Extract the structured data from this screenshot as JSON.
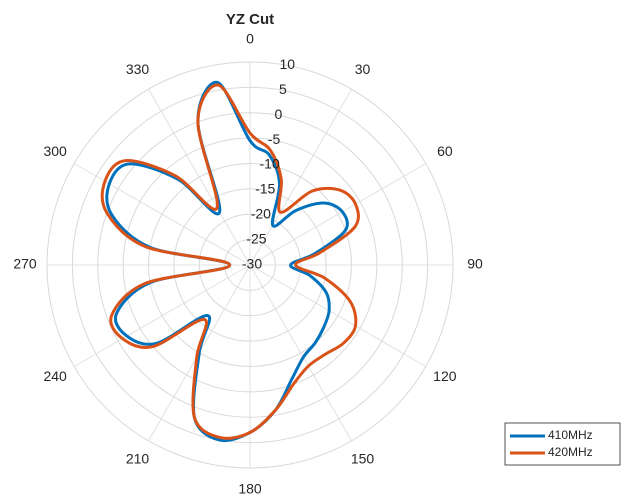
{
  "chart_data": {
    "type": "polar",
    "title": "YZ Cut",
    "theta": [
      0,
      10,
      20,
      30,
      40,
      50,
      60,
      70,
      80,
      90,
      100,
      110,
      120,
      130,
      140,
      150,
      160,
      170,
      180,
      190,
      200,
      210,
      220,
      230,
      240,
      250,
      260,
      270,
      280,
      290,
      300,
      310,
      320,
      330,
      340,
      350
    ],
    "thetaticks": [
      0,
      30,
      60,
      90,
      120,
      150,
      180,
      210,
      240,
      270,
      300,
      330
    ],
    "rlim": [
      -30,
      10
    ],
    "rticks": [
      -30,
      -25,
      -20,
      -15,
      -10,
      -5,
      0,
      5,
      10
    ],
    "series": [
      {
        "name": "410MHz",
        "color": "#0072bd",
        "values": [
          -5.5,
          -8,
          -13,
          -21,
          -16,
          -11,
          -9,
          -10,
          -17,
          -22,
          -18,
          -14,
          -12,
          -11,
          -10,
          -9,
          -6,
          -1,
          3,
          5,
          2,
          -10,
          -17,
          -6,
          -2,
          -2,
          -10,
          -26,
          -10,
          -1,
          2,
          1,
          -8,
          -18,
          0,
          6.5
        ]
      },
      {
        "name": "420MHz",
        "color": "#d95319",
        "values": [
          -4,
          -7,
          -12,
          -18,
          -11,
          -7,
          -6,
          -8,
          -16,
          -21,
          -15,
          -9,
          -6,
          -6,
          -7,
          -7,
          -5,
          -1,
          3,
          4.5,
          2,
          -9,
          -16,
          -5,
          -1,
          -1,
          -9,
          -26,
          -9,
          0,
          3,
          2,
          -7,
          -17,
          0,
          6
        ]
      }
    ],
    "grid": true,
    "legend": "lower right"
  }
}
